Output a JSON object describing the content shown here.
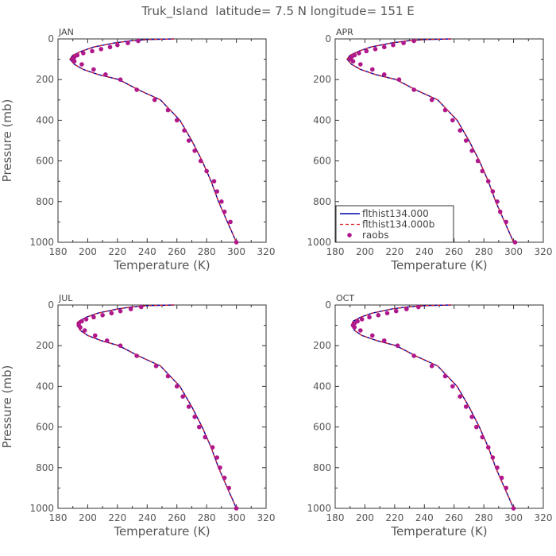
{
  "title": "Truk_Island  latitude= 7.5 N longitude= 151 E",
  "colors": {
    "model": "#0000aa",
    "modelb": "#dd2222",
    "obs": "#b0178a",
    "axis": "#333333"
  },
  "chart_data": [
    {
      "type": "line",
      "panel": "JAN",
      "xlabel": "Temperature (K)",
      "ylabel": "Pressure (mb)",
      "xlim": [
        180,
        320
      ],
      "ylim": [
        1000,
        0
      ],
      "y_inverted": true,
      "xticks": [
        180,
        200,
        220,
        240,
        260,
        280,
        300,
        320
      ],
      "yticks": [
        0,
        200,
        400,
        600,
        800,
        1000
      ],
      "series": [
        {
          "name": "flthist134.000",
          "style": "solid",
          "x": [
            258,
            240,
            228,
            218,
            204,
            196,
            190,
            188,
            191,
            197,
            207,
            221,
            234,
            249,
            262,
            270,
            277,
            283,
            288,
            291,
            294,
            297,
            300
          ],
          "y": [
            0,
            3,
            10,
            20,
            40,
            60,
            80,
            100,
            125,
            150,
            175,
            200,
            250,
            300,
            400,
            500,
            600,
            700,
            800,
            850,
            900,
            950,
            1000
          ]
        },
        {
          "name": "flthist134.000b",
          "style": "dashed",
          "x": [
            258,
            240,
            228,
            218,
            204,
            196,
            190,
            188,
            191,
            197,
            207,
            221,
            234,
            249,
            262,
            270,
            277,
            283,
            288,
            291,
            294,
            297,
            300
          ],
          "y": [
            0,
            3,
            10,
            20,
            40,
            60,
            80,
            100,
            125,
            150,
            175,
            200,
            250,
            300,
            400,
            500,
            600,
            700,
            800,
            850,
            900,
            950,
            1000
          ]
        },
        {
          "name": "raobs",
          "style": "points",
          "x": [
            234,
            227,
            220,
            215,
            209,
            203,
            197,
            193,
            191,
            190,
            191,
            196,
            204,
            212,
            222,
            233,
            245,
            254,
            260,
            265,
            268,
            272,
            276,
            280,
            285,
            287,
            290,
            292,
            296,
            300
          ],
          "y": [
            10,
            20,
            30,
            40,
            50,
            60,
            70,
            80,
            90,
            100,
            110,
            125,
            150,
            175,
            200,
            250,
            300,
            350,
            400,
            450,
            500,
            550,
            600,
            650,
            700,
            750,
            800,
            850,
            900,
            1000
          ]
        }
      ]
    },
    {
      "type": "line",
      "panel": "APR",
      "xlabel": "Temperature (K)",
      "ylabel": "",
      "xlim": [
        180,
        320
      ],
      "ylim": [
        1000,
        0
      ],
      "y_inverted": true,
      "xticks": [
        180,
        200,
        220,
        240,
        260,
        280,
        300,
        320
      ],
      "yticks": [
        0,
        200,
        400,
        600,
        800,
        1000
      ],
      "legend": {
        "placement": "lower-left",
        "entries": [
          "flthist134.000",
          "flthist134.000b",
          "raobs"
        ]
      },
      "series": [
        {
          "name": "flthist134.000",
          "style": "solid",
          "x": [
            258,
            240,
            228,
            218,
            204,
            196,
            190,
            188,
            191,
            197,
            207,
            221,
            234,
            249,
            262,
            270,
            277,
            283,
            288,
            291,
            294,
            297,
            300
          ],
          "y": [
            0,
            3,
            10,
            20,
            40,
            60,
            80,
            100,
            125,
            150,
            175,
            200,
            250,
            300,
            400,
            500,
            600,
            700,
            800,
            850,
            900,
            950,
            1000
          ]
        },
        {
          "name": "flthist134.000b",
          "style": "dashed",
          "x": [
            258,
            240,
            228,
            218,
            204,
            196,
            190,
            188,
            191,
            197,
            207,
            221,
            234,
            249,
            262,
            270,
            277,
            283,
            288,
            291,
            294,
            297,
            300
          ],
          "y": [
            0,
            3,
            10,
            20,
            40,
            60,
            80,
            100,
            125,
            150,
            175,
            200,
            250,
            300,
            400,
            500,
            600,
            700,
            800,
            850,
            900,
            950,
            1000
          ]
        },
        {
          "name": "raobs",
          "style": "points",
          "x": [
            233,
            226,
            219,
            213,
            207,
            201,
            196,
            193,
            191,
            190,
            192,
            197,
            205,
            213,
            223,
            233,
            245,
            254,
            259,
            264,
            268,
            272,
            276,
            279,
            283,
            286,
            289,
            291,
            295,
            301
          ],
          "y": [
            10,
            20,
            30,
            40,
            50,
            60,
            70,
            80,
            90,
            100,
            110,
            125,
            150,
            175,
            200,
            250,
            300,
            350,
            400,
            450,
            500,
            550,
            600,
            650,
            700,
            750,
            800,
            850,
            900,
            1000
          ]
        }
      ]
    },
    {
      "type": "line",
      "panel": "JUL",
      "xlabel": "Temperature (K)",
      "ylabel": "Pressure (mb)",
      "xlim": [
        180,
        320
      ],
      "ylim": [
        1000,
        0
      ],
      "y_inverted": true,
      "xticks": [
        180,
        200,
        220,
        240,
        260,
        280,
        300,
        320
      ],
      "yticks": [
        0,
        200,
        400,
        600,
        800,
        1000
      ],
      "series": [
        {
          "name": "flthist134.000",
          "style": "solid",
          "x": [
            258,
            240,
            229,
            220,
            207,
            199,
            194,
            193,
            195,
            200,
            209,
            221,
            234,
            249,
            262,
            270,
            277,
            283,
            288,
            291,
            294,
            297,
            300
          ],
          "y": [
            0,
            3,
            10,
            20,
            40,
            60,
            80,
            100,
            125,
            150,
            175,
            200,
            250,
            300,
            400,
            500,
            600,
            700,
            800,
            850,
            900,
            950,
            1000
          ]
        },
        {
          "name": "flthist134.000b",
          "style": "dashed",
          "x": [
            258,
            240,
            229,
            220,
            207,
            199,
            194,
            193,
            195,
            200,
            209,
            221,
            234,
            249,
            262,
            270,
            277,
            283,
            288,
            291,
            294,
            297,
            300
          ],
          "y": [
            0,
            3,
            10,
            20,
            40,
            60,
            80,
            100,
            125,
            150,
            175,
            200,
            250,
            300,
            400,
            500,
            600,
            700,
            800,
            850,
            900,
            950,
            1000
          ]
        },
        {
          "name": "raobs",
          "style": "points",
          "x": [
            236,
            229,
            222,
            216,
            210,
            204,
            199,
            196,
            194,
            194,
            195,
            198,
            205,
            213,
            222,
            233,
            246,
            254,
            260,
            264,
            268,
            272,
            275,
            279,
            284,
            287,
            289,
            292,
            295,
            300
          ],
          "y": [
            10,
            20,
            30,
            40,
            50,
            60,
            70,
            80,
            90,
            100,
            110,
            125,
            150,
            175,
            200,
            250,
            300,
            350,
            400,
            450,
            500,
            550,
            600,
            650,
            700,
            750,
            800,
            850,
            900,
            1000
          ]
        }
      ]
    },
    {
      "type": "line",
      "panel": "OCT",
      "xlabel": "Temperature (K)",
      "ylabel": "",
      "xlim": [
        180,
        320
      ],
      "ylim": [
        1000,
        0
      ],
      "y_inverted": true,
      "xticks": [
        180,
        200,
        220,
        240,
        260,
        280,
        300,
        320
      ],
      "yticks": [
        0,
        200,
        400,
        600,
        800,
        1000
      ],
      "series": [
        {
          "name": "flthist134.000",
          "style": "solid",
          "x": [
            258,
            240,
            228,
            218,
            205,
            197,
            192,
            191,
            193,
            198,
            208,
            221,
            234,
            249,
            262,
            270,
            277,
            283,
            288,
            291,
            294,
            297,
            300
          ],
          "y": [
            0,
            3,
            10,
            20,
            40,
            60,
            80,
            100,
            125,
            150,
            175,
            200,
            250,
            300,
            400,
            500,
            600,
            700,
            800,
            850,
            900,
            950,
            1000
          ]
        },
        {
          "name": "flthist134.000b",
          "style": "dashed",
          "x": [
            258,
            240,
            228,
            218,
            205,
            197,
            192,
            191,
            193,
            198,
            208,
            221,
            234,
            249,
            262,
            270,
            277,
            283,
            288,
            291,
            294,
            297,
            300
          ],
          "y": [
            0,
            3,
            10,
            20,
            40,
            60,
            80,
            100,
            125,
            150,
            175,
            200,
            250,
            300,
            400,
            500,
            600,
            700,
            800,
            850,
            900,
            950,
            1000
          ]
        },
        {
          "name": "raobs",
          "style": "points",
          "x": [
            236,
            228,
            221,
            215,
            209,
            203,
            198,
            195,
            193,
            192,
            193,
            197,
            205,
            213,
            222,
            233,
            245,
            254,
            259,
            264,
            268,
            272,
            275,
            279,
            283,
            286,
            289,
            292,
            295,
            300
          ],
          "y": [
            10,
            20,
            30,
            40,
            50,
            60,
            70,
            80,
            90,
            100,
            110,
            125,
            150,
            175,
            200,
            250,
            300,
            350,
            400,
            450,
            500,
            550,
            600,
            650,
            700,
            750,
            800,
            850,
            900,
            1000
          ]
        }
      ]
    }
  ]
}
